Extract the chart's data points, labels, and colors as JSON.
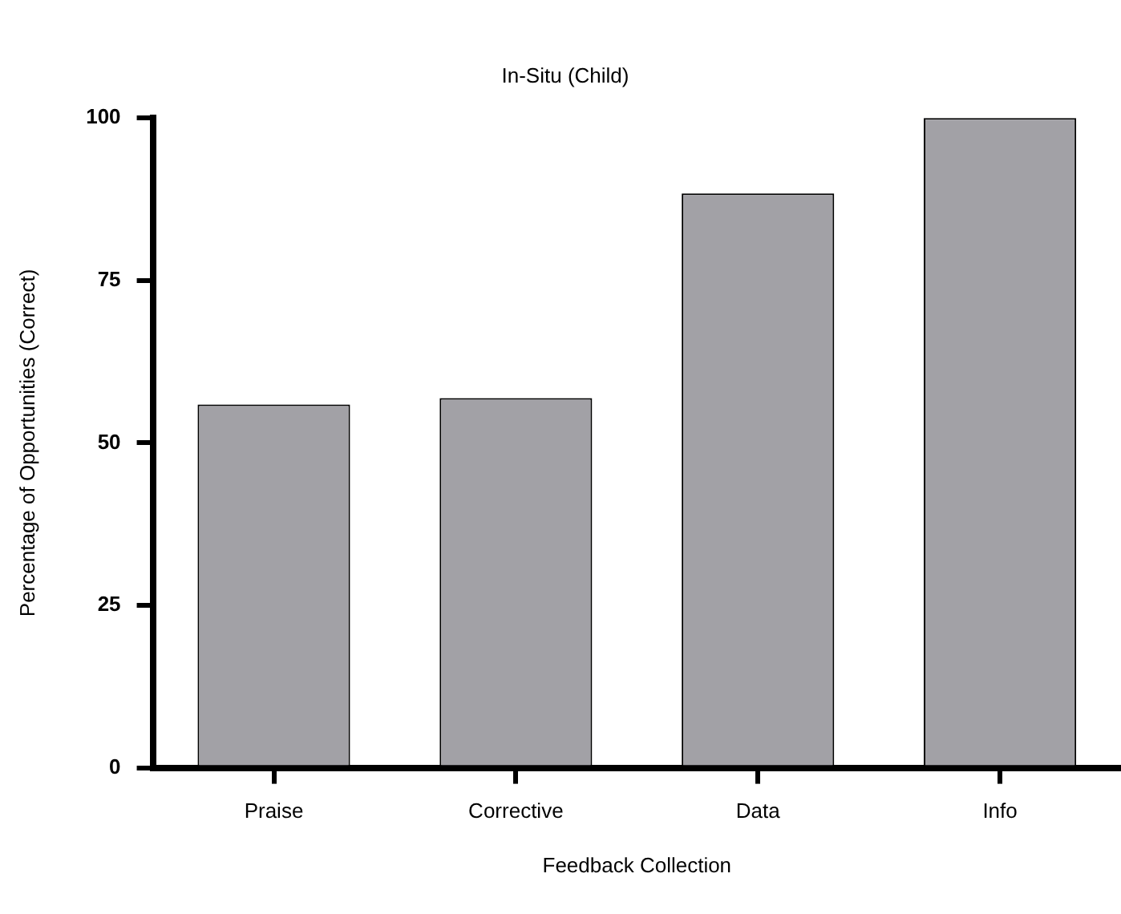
{
  "chart_data": {
    "type": "bar",
    "title": "In-Situ (Child)",
    "xlabel": "Feedback Collection",
    "ylabel": "Percentage of Opportunities (Correct)",
    "categories": [
      "Praise",
      "Corrective",
      "Data",
      "Info"
    ],
    "values": [
      55.9,
      56.9,
      88.4,
      100
    ],
    "color": "#a2a1a6",
    "ylim": [
      0,
      100
    ],
    "yticks": [
      0,
      25,
      50,
      75,
      100
    ],
    "grid": false,
    "legend": false
  }
}
